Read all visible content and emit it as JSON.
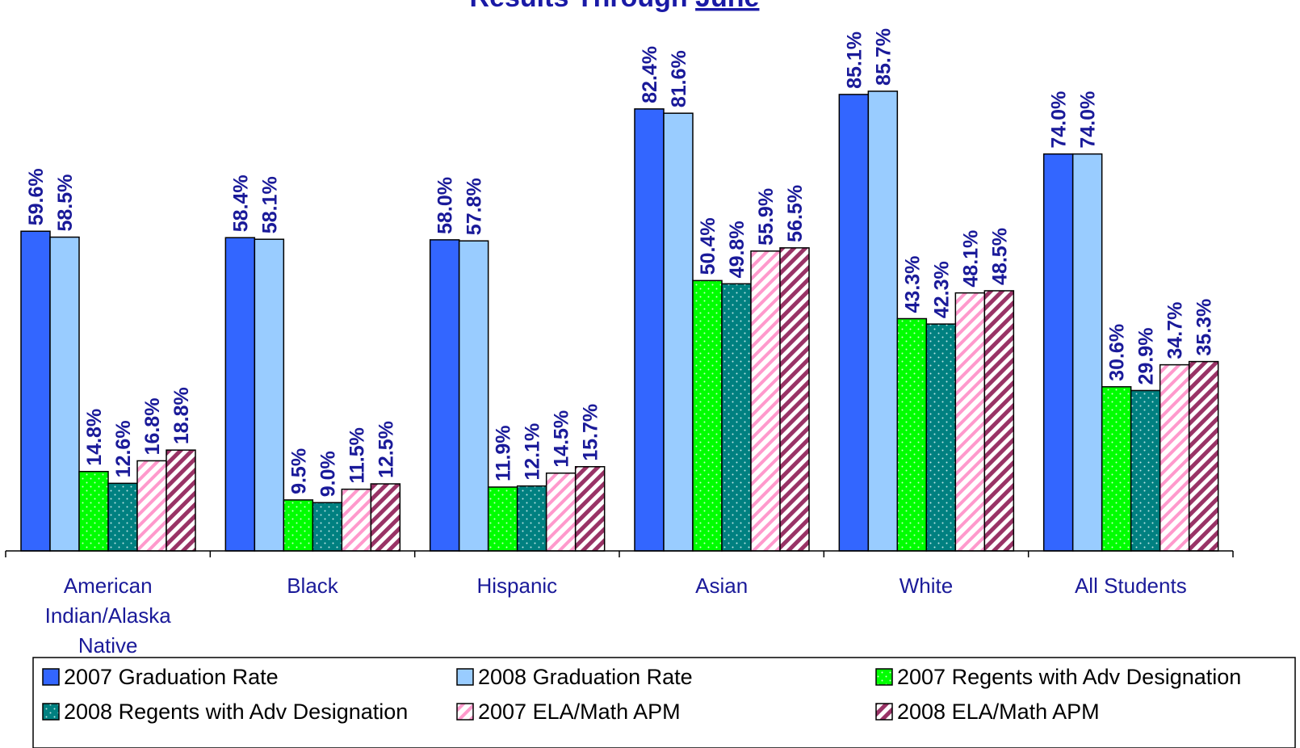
{
  "title": {
    "prefix": "Results Through ",
    "underlined": "June"
  },
  "chart_data": {
    "type": "bar",
    "categories": [
      [
        "American",
        "Indian/Alaska",
        "Native"
      ],
      [
        "Black"
      ],
      [
        "Hispanic"
      ],
      [
        "Asian"
      ],
      [
        "White"
      ],
      [
        "All Students"
      ]
    ],
    "series": [
      {
        "name": "2007 Graduation Rate",
        "values": [
          59.6,
          58.4,
          58.0,
          82.4,
          85.1,
          74.0
        ],
        "labels": [
          "59.6%",
          "58.4%",
          "58.0%",
          "82.4%",
          "85.1%",
          "74.0%"
        ],
        "color": "#3366ff",
        "pattern": "solid"
      },
      {
        "name": "2008 Graduation Rate",
        "values": [
          58.5,
          58.1,
          57.8,
          81.6,
          85.7,
          74.0
        ],
        "labels": [
          "58.5%",
          "58.1%",
          "57.8%",
          "81.6%",
          "85.7%",
          "74.0%"
        ],
        "color": "#99ccff",
        "pattern": "solid"
      },
      {
        "name": "2007 Regents with Adv Designation",
        "values": [
          14.8,
          9.5,
          11.9,
          50.4,
          43.3,
          30.6
        ],
        "labels": [
          "14.8%",
          "9.5%",
          "11.9%",
          "50.4%",
          "43.3%",
          "30.6%"
        ],
        "color": "#00ff00",
        "pattern": "dots"
      },
      {
        "name": "2008 Regents with Adv Designation",
        "values": [
          12.6,
          9.0,
          12.1,
          49.8,
          42.3,
          29.9
        ],
        "labels": [
          "12.6%",
          "9.0%",
          "12.1%",
          "49.8%",
          "42.3%",
          "29.9%"
        ],
        "color": "#008080",
        "pattern": "dots"
      },
      {
        "name": "2007 ELA/Math APM",
        "values": [
          16.8,
          11.5,
          14.5,
          55.9,
          48.1,
          34.7
        ],
        "labels": [
          "16.8%",
          "11.5%",
          "14.5%",
          "55.9%",
          "48.1%",
          "34.7%"
        ],
        "color": "#ff99cc",
        "pattern": "stripes"
      },
      {
        "name": "2008 ELA/Math APM",
        "values": [
          18.8,
          12.5,
          15.7,
          56.5,
          48.5,
          35.3
        ],
        "labels": [
          "18.8%",
          "12.5%",
          "15.7%",
          "56.5%",
          "48.5%",
          "35.3%"
        ],
        "color": "#993366",
        "pattern": "stripes"
      }
    ],
    "ylim": [
      0,
      100
    ],
    "grid": false,
    "legend_position": "bottom"
  }
}
